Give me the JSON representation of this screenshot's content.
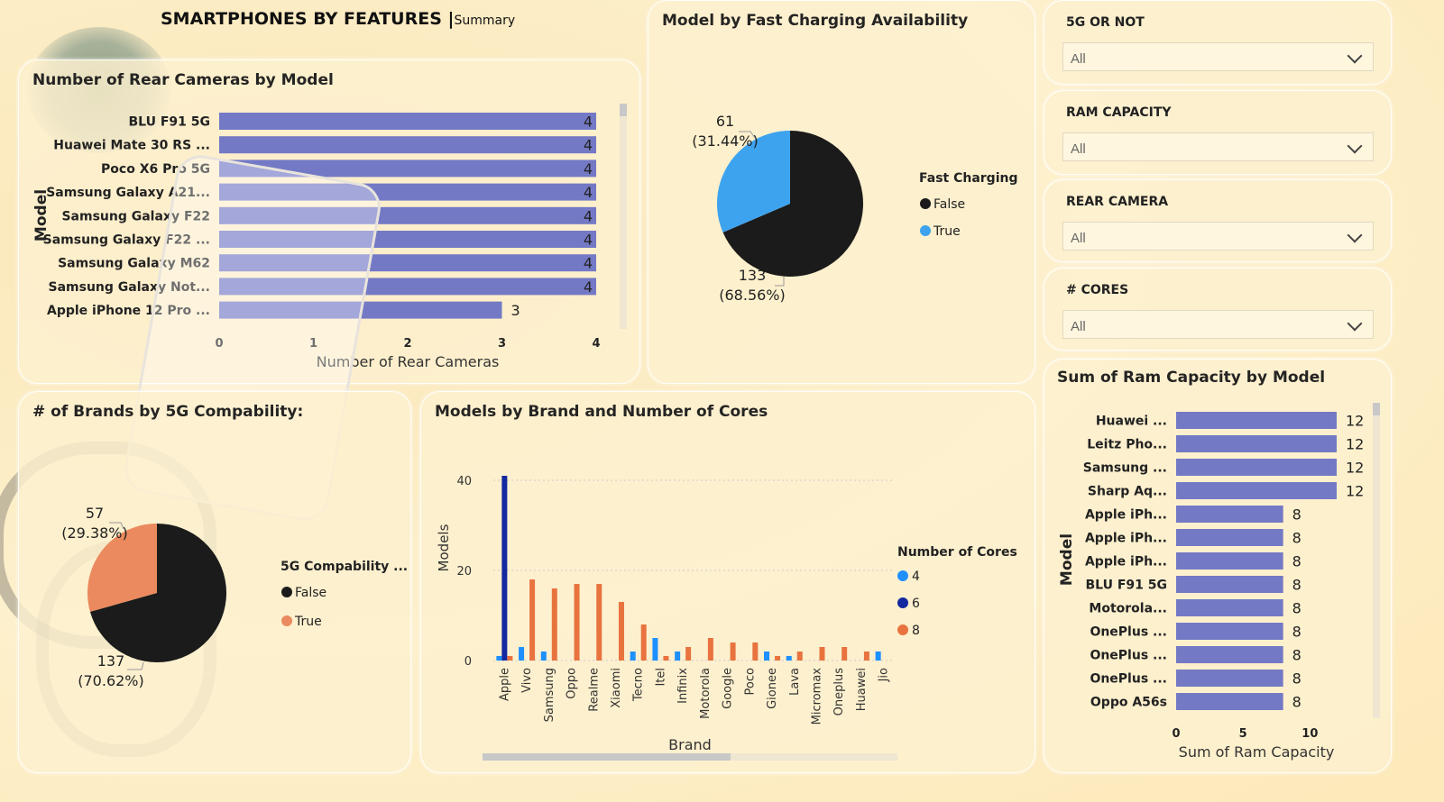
{
  "header": {
    "title": "SMARTPHONES BY FEATURES",
    "separator": "|",
    "subtitle": "Summary"
  },
  "colors": {
    "bar": "#7479c5",
    "black": "#1b1b1b",
    "blue": "#3da3ef",
    "orange": "#ea8a5e",
    "navy": "#1428a0",
    "bar_orange": "#e8733f",
    "bar_blue": "#1e90ff"
  },
  "slicers": [
    {
      "title": "5G OR NOT",
      "value": "All"
    },
    {
      "title": "RAM CAPACITY",
      "value": "All"
    },
    {
      "title": "REAR CAMERA",
      "value": "All"
    },
    {
      "title": "# CORES",
      "value": "All"
    }
  ],
  "chart_data": [
    {
      "type": "bar",
      "orientation": "horizontal",
      "title": "Number of Rear Cameras by Model",
      "xlabel": "Number of Rear Cameras",
      "ylabel": "Model",
      "categories": [
        "BLU F91 5G",
        "Huawei Mate 30 RS ...",
        "Poco X6 Pro 5G",
        "Samsung Galaxy A21...",
        "Samsung Galaxy F22",
        "Samsung Galaxy F22 ...",
        "Samsung Galaxy M62",
        "Samsung Galaxy Not...",
        "Apple iPhone 12 Pro ..."
      ],
      "values": [
        4,
        4,
        4,
        4,
        4,
        4,
        4,
        4,
        3
      ],
      "xlim": [
        0,
        4
      ],
      "xticks": [
        "0",
        "1",
        "2",
        "3",
        "4"
      ]
    },
    {
      "type": "pie",
      "title": "Model by Fast Charging Availability",
      "legend_title": "Fast Charging",
      "slices": [
        {
          "name": "False",
          "value": 133,
          "label": "133",
          "pct": "(68.56%)"
        },
        {
          "name": "True",
          "value": 61,
          "label": "61",
          "pct": "(31.44%)"
        }
      ]
    },
    {
      "type": "pie",
      "title": "# of Brands by 5G Compability:",
      "legend_title": "5G Compability ...",
      "slices": [
        {
          "name": "False",
          "value": 137,
          "label": "137",
          "pct": "(70.62%)"
        },
        {
          "name": "True",
          "value": 57,
          "label": "57",
          "pct": "(29.38%)"
        }
      ]
    },
    {
      "type": "bar",
      "title": "Models by Brand and Number of Cores",
      "xlabel": "Brand",
      "ylabel": "Models",
      "legend_title": "Number of Cores",
      "categories": [
        "Apple",
        "Vivo",
        "Samsung",
        "Oppo",
        "Realme",
        "Xiaomi",
        "Tecno",
        "Itel",
        "Infinix",
        "Motorola",
        "Google",
        "Poco",
        "Gionee",
        "Lava",
        "Micromax",
        "Oneplus",
        "Huawei",
        "Jio"
      ],
      "series": [
        {
          "name": "4",
          "values": [
            1,
            3,
            2,
            0,
            0,
            0,
            2,
            5,
            2,
            0,
            0,
            0,
            2,
            1,
            0,
            0,
            0,
            2
          ]
        },
        {
          "name": "6",
          "values": [
            41,
            0,
            0,
            0,
            0,
            0,
            0,
            0,
            0,
            0,
            0,
            0,
            0,
            0,
            0,
            0,
            0,
            0
          ]
        },
        {
          "name": "8",
          "values": [
            1,
            18,
            16,
            17,
            17,
            13,
            8,
            1,
            3,
            5,
            4,
            4,
            1,
            2,
            3,
            3,
            2,
            0
          ]
        }
      ],
      "ylim": [
        0,
        40
      ],
      "yticks": [
        "0",
        "20",
        "40"
      ]
    },
    {
      "type": "bar",
      "orientation": "horizontal",
      "title": "Sum of Ram Capacity by Model",
      "xlabel": "Sum of Ram Capacity",
      "ylabel": "Model",
      "categories": [
        "Huawei ...",
        "Leitz Pho...",
        "Samsung ...",
        "Sharp Aq...",
        "Apple iPh...",
        "Apple iPh...",
        "Apple iPh...",
        "BLU F91 5G",
        "Motorola...",
        "OnePlus ...",
        "OnePlus ...",
        "OnePlus ...",
        "Oppo A56s"
      ],
      "values": [
        12,
        12,
        12,
        12,
        8,
        8,
        8,
        8,
        8,
        8,
        8,
        8,
        8
      ],
      "xlim": [
        0,
        12
      ],
      "xticks": [
        "0",
        "5",
        "10"
      ]
    }
  ]
}
